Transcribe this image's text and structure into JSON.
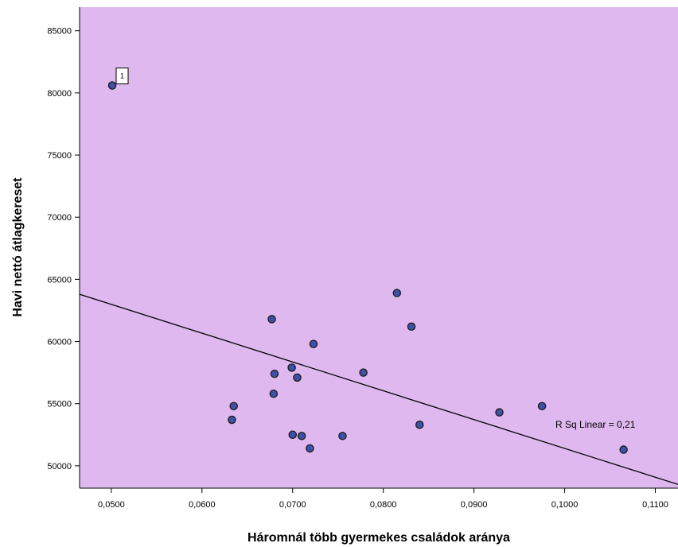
{
  "chart_data": {
    "type": "scatter",
    "xlabel": "Háromnál több gyermekes családok aránya",
    "ylabel": "Havi nettó átlagkereset",
    "xlim": [
      0.0465,
      0.1125
    ],
    "ylim": [
      48200,
      86900
    ],
    "x_ticks": [
      {
        "value": 0.05,
        "label": "0,0500"
      },
      {
        "value": 0.06,
        "label": "0,0600"
      },
      {
        "value": 0.07,
        "label": "0,0700"
      },
      {
        "value": 0.08,
        "label": "0,0800"
      },
      {
        "value": 0.09,
        "label": "0,0900"
      },
      {
        "value": 0.1,
        "label": "0,1000"
      },
      {
        "value": 0.11,
        "label": "0,1100"
      }
    ],
    "y_ticks": [
      {
        "value": 50000,
        "label": "50000"
      },
      {
        "value": 55000,
        "label": "55000"
      },
      {
        "value": 60000,
        "label": "60000"
      },
      {
        "value": 65000,
        "label": "65000"
      },
      {
        "value": 70000,
        "label": "70000"
      },
      {
        "value": 75000,
        "label": "75000"
      },
      {
        "value": 80000,
        "label": "80000"
      },
      {
        "value": 85000,
        "label": "85000"
      }
    ],
    "points": [
      {
        "x": 0.0501,
        "y": 80600,
        "label": "1"
      },
      {
        "x": 0.0633,
        "y": 53700
      },
      {
        "x": 0.0635,
        "y": 54800
      },
      {
        "x": 0.0677,
        "y": 61800
      },
      {
        "x": 0.0679,
        "y": 55800
      },
      {
        "x": 0.068,
        "y": 57400
      },
      {
        "x": 0.0699,
        "y": 57900
      },
      {
        "x": 0.07,
        "y": 52500
      },
      {
        "x": 0.0705,
        "y": 57100
      },
      {
        "x": 0.071,
        "y": 52400
      },
      {
        "x": 0.0719,
        "y": 51400
      },
      {
        "x": 0.0723,
        "y": 59800
      },
      {
        "x": 0.0755,
        "y": 52400
      },
      {
        "x": 0.0778,
        "y": 57500
      },
      {
        "x": 0.0815,
        "y": 63900
      },
      {
        "x": 0.0831,
        "y": 61200
      },
      {
        "x": 0.084,
        "y": 53300
      },
      {
        "x": 0.0928,
        "y": 54300
      },
      {
        "x": 0.0975,
        "y": 54800
      },
      {
        "x": 0.1065,
        "y": 51300
      }
    ],
    "fit_line": {
      "x1": 0.0465,
      "y1": 63800,
      "x2": 0.1125,
      "y2": 48500
    },
    "annotation": "R Sq Linear = 0,21",
    "colors": {
      "plot_background": "#dfb8f0",
      "point_fill": "#3f51a6",
      "point_stroke": "#1a1a1a",
      "fit_line": "#000000"
    },
    "grid": false
  }
}
